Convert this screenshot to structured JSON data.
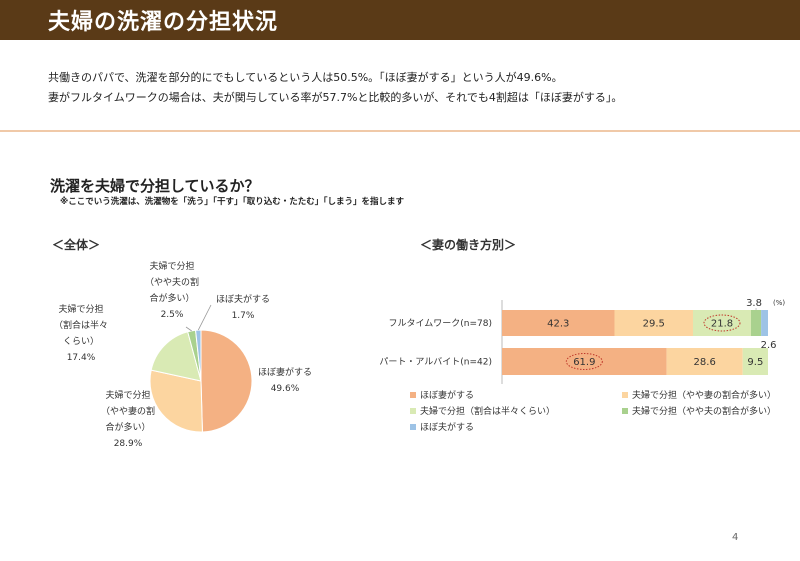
{
  "header": {
    "title": "夫婦の洗濯の分担状況"
  },
  "summary": {
    "line1": "共働きのパパで、洗濯を部分的にでもしているという人は50.5%。「ほぼ妻がする」という人が49.6%。",
    "line2": "妻がフルタイムワークの場合は、夫が関与している率が57.7%と比較的多いが、それでも4割超は「ほぼ妻がする」。"
  },
  "question": {
    "title": "洗濯を夫婦で分担しているか？",
    "note": "※ここでいう洗濯は、洗濯物を「洗う」「干す」「取り込む・たたむ」「しまう」を指します"
  },
  "page_number": "4",
  "colors": {
    "wife": "#f4b183",
    "shared_wife_more": "#fcd5a0",
    "shared_half": "#d9eab4",
    "shared_husband_more": "#a9d18e",
    "husband": "#9dc3e6",
    "header_bg": "#5a3a17"
  },
  "chart_data": [
    {
      "type": "pie",
      "title": "＜全体＞",
      "slices": [
        {
          "name": "ほぼ妻がする",
          "value": 49.6,
          "label_lines": [
            "ほぼ妻がする",
            "49.6%"
          ]
        },
        {
          "name": "夫婦で分担（やや妻の割合が多い）",
          "value": 28.9,
          "label_lines": [
            "夫婦で分担",
            "（やや妻の割",
            "合が多い）",
            "28.9%"
          ]
        },
        {
          "name": "夫婦で分担（割合は半々くらい）",
          "value": 17.4,
          "label_lines": [
            "夫婦で分担",
            "（割合は半々",
            "くらい）",
            "17.4%"
          ]
        },
        {
          "name": "夫婦で分担（やや夫の割合が多い）",
          "value": 2.5,
          "label_lines": [
            "夫婦で分担",
            "（やや夫の割",
            "合が多い）",
            "2.5%"
          ]
        },
        {
          "name": "ほぼ夫がする",
          "value": 1.7,
          "label_lines": [
            "ほぼ夫がする",
            "1.7%"
          ]
        }
      ]
    },
    {
      "type": "bar",
      "orientation": "horizontal-stacked",
      "title": "＜妻の働き方別＞",
      "unit": "(%)",
      "categories": [
        "フルタイムワーク(n=78)",
        "パート・アルバイト(n=42)"
      ],
      "series": [
        {
          "name": "ほぼ妻がする",
          "values": [
            42.3,
            61.9
          ]
        },
        {
          "name": "夫婦で分担（やや妻の割合が多い）",
          "values": [
            29.5,
            28.6
          ]
        },
        {
          "name": "夫婦で分担（割合は半々くらい）",
          "values": [
            21.8,
            9.5
          ]
        },
        {
          "name": "夫婦で分担（やや夫の割合が多い）",
          "values": [
            3.8,
            0
          ]
        },
        {
          "name": "ほぼ夫がする",
          "values": [
            2.6,
            0
          ]
        }
      ],
      "highlighted": [
        "21.8",
        "61.9"
      ]
    }
  ]
}
